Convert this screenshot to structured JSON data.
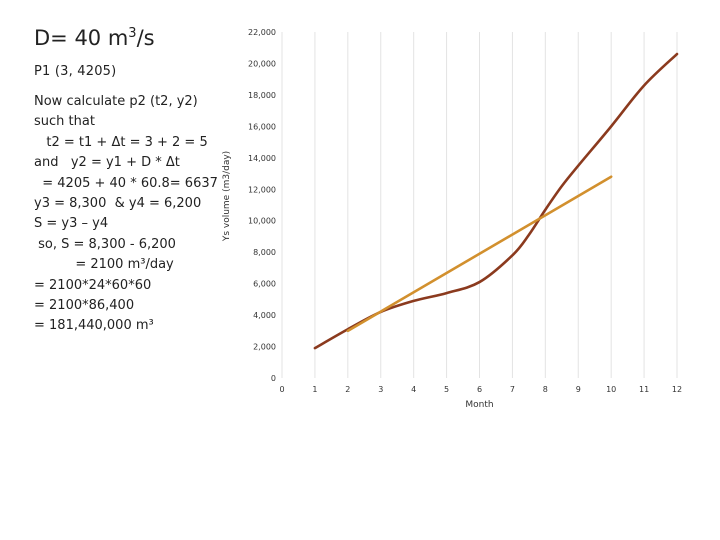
{
  "slide": {
    "title_main": "D= 40 m",
    "title_sup": "3",
    "title_tail": "/s",
    "p1": "P1 (3, 4205)",
    "lines": [
      "Now calculate p2 (t2, y2)",
      "such that",
      "   t2 = t1 + Δt = 3 + 2 = 5",
      "and   y2 = y1 + D * Δt",
      "  = 4205 + 40 * 60.8= 6637",
      "y3 = 8,300  & y4 = 6,200",
      "S = y3 – y4",
      " so, S = 8,300 - 6,200",
      "          = 2100 m³/day",
      "= 2100*24*60*60",
      "= 2100*86,400",
      "= 181,440,000 m³"
    ]
  },
  "chart_data": {
    "type": "line",
    "xlabel": "Month",
    "ylabel": "Ys volume (m3/day)",
    "xlim": [
      0,
      12
    ],
    "ylim": [
      0,
      22000
    ],
    "x_ticks": [
      "0",
      "1",
      "2",
      "3",
      "4",
      "5",
      "6",
      "7",
      "8",
      "9",
      "10",
      "11",
      "12"
    ],
    "y_ticks": [
      "0",
      "2,000",
      "4,000",
      "6,000",
      "8,000",
      "10,000",
      "12,000",
      "14,000",
      "16,000",
      "18,000",
      "20,000",
      "22,000"
    ],
    "grid": "vertical",
    "series": [
      {
        "color": "#8b3a1e",
        "x": [
          1,
          2,
          3,
          4,
          5,
          6,
          7,
          7.5,
          8,
          8.5,
          9,
          10,
          11,
          12
        ],
        "y": [
          1900,
          3100,
          4200,
          4900,
          5400,
          6100,
          7800,
          9100,
          10700,
          12200,
          13500,
          16000,
          18600,
          20600
        ]
      },
      {
        "color": "#d2902e",
        "x": [
          2,
          10
        ],
        "y": [
          3000,
          12800
        ]
      }
    ]
  }
}
